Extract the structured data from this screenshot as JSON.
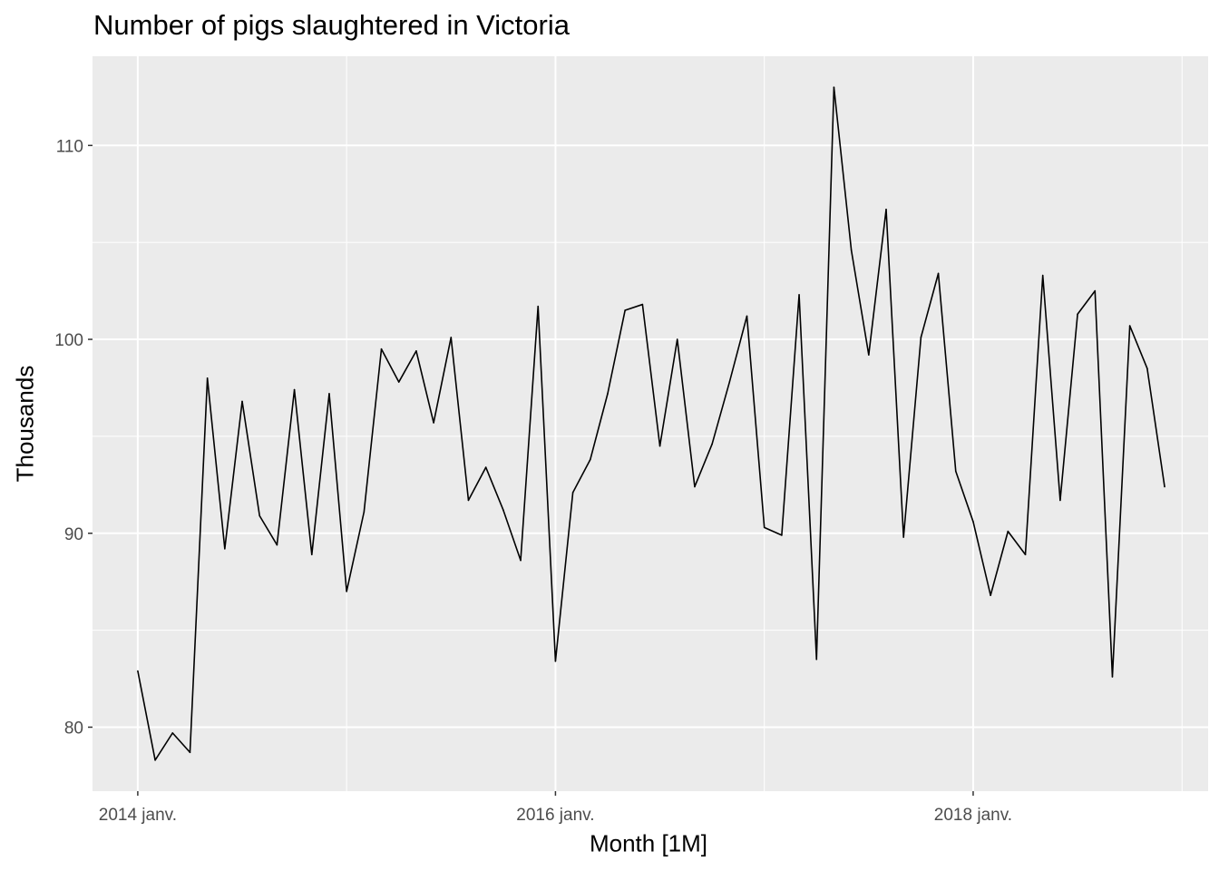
{
  "chart_data": {
    "type": "line",
    "title": "Number of pigs slaughtered in Victoria",
    "xlabel": "Month [1M]",
    "ylabel": "Thousands",
    "x_start": "2014-01",
    "x_frequency": "monthly",
    "x_ticks": [
      "2014 janv.",
      "2016 janv.",
      "2018 janv."
    ],
    "y_ticks": [
      80,
      90,
      100,
      110
    ],
    "ylim": [
      76.7,
      114.6
    ],
    "grid": true,
    "background": "#ebebeb",
    "line_color": "#000000",
    "series": [
      {
        "values": [
          82.9,
          78.3,
          79.7,
          78.7,
          98.0,
          89.2,
          96.8,
          90.9,
          89.4,
          97.4,
          88.9,
          97.2,
          87.0,
          91.1,
          99.5,
          97.8,
          99.4,
          95.7,
          100.1,
          91.7,
          93.4,
          91.2,
          88.6,
          101.7,
          83.4,
          92.1,
          93.8,
          97.2,
          101.5,
          101.8,
          94.5,
          100.0,
          92.4,
          94.6,
          97.8,
          101.2,
          90.3,
          89.9,
          102.3,
          83.5,
          113.0,
          104.6,
          99.2,
          106.7,
          89.8,
          100.1,
          103.4,
          93.2,
          90.6,
          86.8,
          90.1,
          88.9,
          103.3,
          91.7,
          101.3,
          102.5,
          82.6,
          100.7,
          98.5,
          92.4
        ]
      }
    ]
  }
}
